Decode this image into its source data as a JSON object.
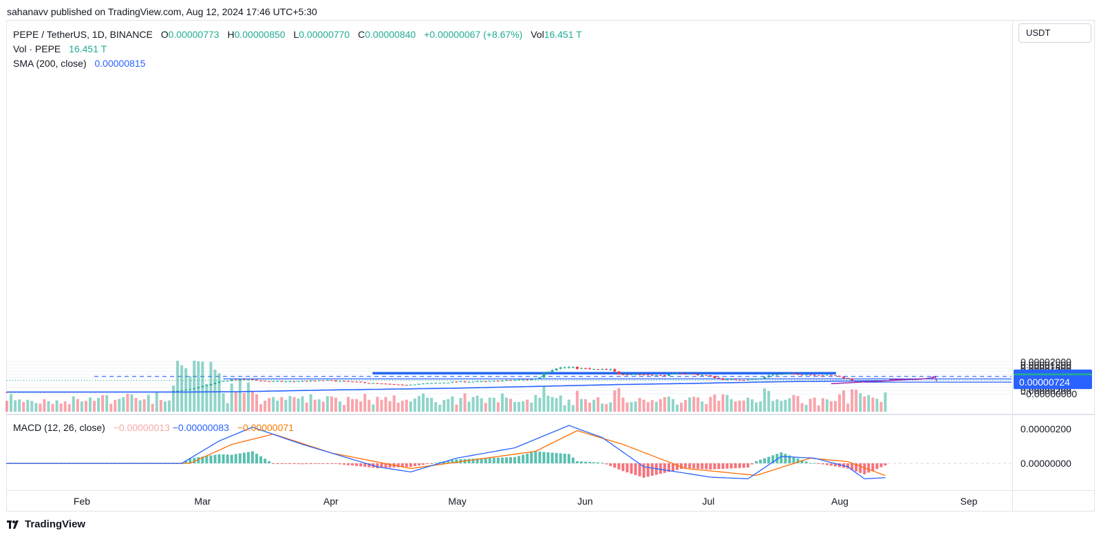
{
  "publisher_line": "sahanavv published on TradingView.com, Aug 12, 2024 17:46 UTC+5:30",
  "legend": {
    "symbol": "PEPE / TetherUS, 1D, BINANCE",
    "o_label": "O",
    "o_value": "0.00000773",
    "h_label": "H",
    "h_value": "0.00000850",
    "l_label": "L",
    "l_value": "0.00000770",
    "c_label": "C",
    "c_value": "0.00000840",
    "change": "+0.00000067 (+8.67%)",
    "vol_label": "Vol",
    "vol_value": "16.451 T",
    "vol_row_label": "Vol · PEPE",
    "vol_row_value": "16.451 T",
    "sma_label": "SMA (200, close)",
    "sma_value": "0.00000815"
  },
  "currency_button": "USDT",
  "macd_legend": {
    "label": "MACD (12, 26, close)",
    "hist": "−0.00000013",
    "macd": "−0.00000083",
    "signal": "−0.00000071"
  },
  "brand": "TradingView",
  "colors": {
    "up": "#22ab94",
    "down": "#f23645",
    "sma": "#2962ff",
    "zone_fill": "#bfe6fb",
    "zone_stroke": "#1e63f0",
    "trendline": "#9c27b0",
    "macd_line": "#2962ff",
    "signal_line": "#ff6d00",
    "tag_green": "#22ab94",
    "tag_blue": "#2962ff"
  },
  "chart_data": {
    "type": "candlestick",
    "title": "PEPE / TetherUS, 1D, BINANCE",
    "price_ticks": [
      "0.00002000",
      "0.00001800",
      "0.00001600",
      "0.00001400",
      "0.00001200",
      "0.00001000",
      "0.00000800",
      "0.00000600",
      "0.00000400",
      "0.00000200",
      "−0.00000000"
    ],
    "price_tick_values": [
      2e-05,
      1.8e-05,
      1.6e-05,
      1.4e-05,
      1.2e-05,
      1e-05,
      8e-06,
      6e-06,
      4e-06,
      2e-06,
      0
    ],
    "macd_ticks": [
      "0.00000200",
      "0.00000000"
    ],
    "time_labels": [
      "Feb",
      "Mar",
      "Apr",
      "May",
      "Jun",
      "Jul",
      "Aug",
      "Sep"
    ],
    "price_tags": [
      {
        "text": "0.00001084",
        "value": 1.084e-05,
        "style": "blue"
      },
      {
        "text": "0.00000925",
        "value": 9.25e-06,
        "style": "blue"
      },
      {
        "text": "0.00000840",
        "value": 8.4e-06,
        "style": "green"
      },
      {
        "text": "0.00000724",
        "value": 7.24e-06,
        "style": "blue"
      }
    ],
    "resistance_zone": {
      "low": 1.25e-05,
      "high": 1.31e-05,
      "start_date": "2024-04-11",
      "end_date": "2024-07-31"
    },
    "horizontal_lines": [
      {
        "value": 1.084e-05,
        "style": "dashed",
        "start_date": "2024-02-04"
      },
      {
        "value": 9.25e-06,
        "style": "solid",
        "start_date": "2024-03-06"
      },
      {
        "value": 7.24e-06,
        "style": "solid",
        "start_date": "2024-08-07"
      }
    ],
    "keyframes_close": [
      [
        "2024-01-14",
        1.07e-06
      ],
      [
        "2024-02-08",
        1.2e-06
      ],
      [
        "2024-02-22",
        1.3e-06
      ],
      [
        "2024-02-27",
        2.8e-06
      ],
      [
        "2024-03-01",
        4.8e-06
      ],
      [
        "2024-03-05",
        7.3e-06
      ],
      [
        "2024-03-08",
        8.7e-06
      ],
      [
        "2024-03-13",
        8.8e-06
      ],
      [
        "2024-03-16",
        7.8e-06
      ],
      [
        "2024-03-21",
        7.6e-06
      ],
      [
        "2024-03-31",
        8.3e-06
      ],
      [
        "2024-04-08",
        7.1e-06
      ],
      [
        "2024-04-13",
        6.2e-06
      ],
      [
        "2024-04-18",
        5.4e-06
      ],
      [
        "2024-04-24",
        6.5e-06
      ],
      [
        "2024-05-01",
        7.4e-06
      ],
      [
        "2024-05-08",
        7.6e-06
      ],
      [
        "2024-05-15",
        8.6e-06
      ],
      [
        "2024-05-19",
        8.9e-06
      ],
      [
        "2024-05-21",
        1.03e-05
      ],
      [
        "2024-05-22",
        1.31e-05
      ],
      [
        "2024-05-25",
        1.61e-05
      ],
      [
        "2024-05-28",
        1.65e-05
      ],
      [
        "2024-06-02",
        1.52e-05
      ],
      [
        "2024-06-07",
        1.49e-05
      ],
      [
        "2024-06-09",
        1.24e-05
      ],
      [
        "2024-06-14",
        1.21e-05
      ],
      [
        "2024-06-19",
        1.13e-05
      ],
      [
        "2024-06-24",
        1.28e-05
      ],
      [
        "2024-06-30",
        1.14e-05
      ],
      [
        "2024-07-04",
        8.9e-06
      ],
      [
        "2024-07-09",
        8.8e-06
      ],
      [
        "2024-07-13",
        9.3e-06
      ],
      [
        "2024-07-15",
        1.16e-05
      ],
      [
        "2024-07-20",
        1.24e-05
      ],
      [
        "2024-07-26",
        1.18e-05
      ],
      [
        "2024-07-31",
        1.12e-05
      ],
      [
        "2024-08-03",
        9.4e-06
      ],
      [
        "2024-08-05",
        7.6e-06
      ],
      [
        "2024-08-08",
        8.1e-06
      ],
      [
        "2024-08-11",
        7.7e-06
      ],
      [
        "2024-08-12",
        8.4e-06
      ]
    ],
    "sma_200": [
      [
        "2024-01-14",
        1.1e-06
      ],
      [
        "2024-02-25",
        1.1e-06
      ],
      [
        "2024-03-10",
        1.3e-06
      ],
      [
        "2024-04-01",
        2.4e-06
      ],
      [
        "2024-05-01",
        3.5e-06
      ],
      [
        "2024-05-20",
        4.6e-06
      ],
      [
        "2024-06-10",
        5.8e-06
      ],
      [
        "2024-07-01",
        6.7e-06
      ],
      [
        "2024-07-20",
        7.6e-06
      ],
      [
        "2024-08-12",
        8.15e-06
      ]
    ],
    "macd_line": [
      [
        "2024-01-14",
        0.0
      ],
      [
        "2024-02-25",
        0.0
      ],
      [
        "2024-03-05",
        1.3e-06
      ],
      [
        "2024-03-13",
        2.1e-06
      ],
      [
        "2024-03-25",
        1.1e-06
      ],
      [
        "2024-04-12",
        -2e-07
      ],
      [
        "2024-04-20",
        -5e-07
      ],
      [
        "2024-05-01",
        3e-07
      ],
      [
        "2024-05-15",
        9e-07
      ],
      [
        "2024-05-28",
        2.2e-06
      ],
      [
        "2024-06-05",
        1.5e-06
      ],
      [
        "2024-06-15",
        -2e-07
      ],
      [
        "2024-07-01",
        -8e-07
      ],
      [
        "2024-07-10",
        -9e-07
      ],
      [
        "2024-07-18",
        4e-07
      ],
      [
        "2024-07-26",
        3e-07
      ],
      [
        "2024-08-03",
        -2e-07
      ],
      [
        "2024-08-07",
        -9e-07
      ],
      [
        "2024-08-12",
        -8.3e-07
      ]
    ],
    "signal_line": [
      [
        "2024-01-14",
        0.0
      ],
      [
        "2024-02-27",
        0.0
      ],
      [
        "2024-03-08",
        1.1e-06
      ],
      [
        "2024-03-18",
        1.7e-06
      ],
      [
        "2024-04-01",
        6e-07
      ],
      [
        "2024-04-20",
        -3e-07
      ],
      [
        "2024-05-05",
        2e-07
      ],
      [
        "2024-05-20",
        7e-07
      ],
      [
        "2024-05-30",
        1.9e-06
      ],
      [
        "2024-06-10",
        1.1e-06
      ],
      [
        "2024-06-25",
        -3e-07
      ],
      [
        "2024-07-12",
        -7e-07
      ],
      [
        "2024-07-25",
        3e-07
      ],
      [
        "2024-08-03",
        1e-07
      ],
      [
        "2024-08-12",
        -7.1e-07
      ]
    ]
  }
}
